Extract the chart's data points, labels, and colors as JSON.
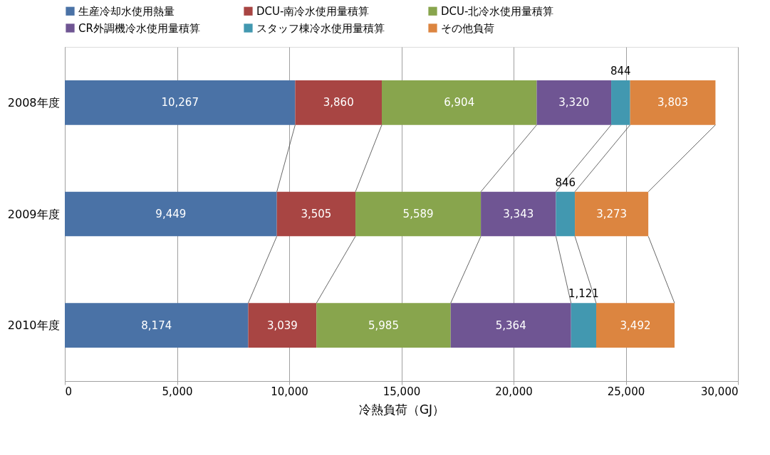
{
  "chart_data": {
    "type": "bar",
    "orientation": "horizontal",
    "stacked": true,
    "xlabel": "冷熱負荷（GJ）",
    "categories": [
      "2008年度",
      "2009年度",
      "2010年度"
    ],
    "series": [
      {
        "name": "生産冷却水使用熱量",
        "color": "#4a72a6",
        "values": [
          10267,
          9449,
          8174
        ],
        "value_labels": [
          "10,267",
          "9,449",
          "8,174"
        ]
      },
      {
        "name": "DCU-南冷水使用量積算",
        "color": "#a84543",
        "values": [
          3860,
          3505,
          3039
        ],
        "value_labels": [
          "3,860",
          "3,505",
          "3,039"
        ]
      },
      {
        "name": "DCU-北冷水使用量積算",
        "color": "#88a54d",
        "values": [
          6904,
          5589,
          5985
        ],
        "value_labels": [
          "6,904",
          "5,589",
          "5,985"
        ]
      },
      {
        "name": "CR外調機冷水使用量積算",
        "color": "#6f5593",
        "values": [
          3320,
          3343,
          5364
        ],
        "value_labels": [
          "3,320",
          "3,343",
          "5,364"
        ]
      },
      {
        "name": "スタッフ棟冷水使用量積算",
        "color": "#4298b0",
        "values": [
          844,
          846,
          1121
        ],
        "value_labels": [
          "844",
          "846",
          "1,121"
        ]
      },
      {
        "name": "その他負荷",
        "color": "#dc8540",
        "values": [
          3803,
          3273,
          3492
        ],
        "value_labels": [
          "3,803",
          "3,273",
          "3,492"
        ]
      }
    ],
    "xlim": [
      0,
      30000
    ],
    "xticks": [
      {
        "value": 0,
        "label": "0"
      },
      {
        "value": 5000,
        "label": "5,000"
      },
      {
        "value": 10000,
        "label": "10,000"
      },
      {
        "value": 15000,
        "label": "15,000"
      },
      {
        "value": 20000,
        "label": "20,000"
      },
      {
        "value": 25000,
        "label": "25,000"
      },
      {
        "value": 30000,
        "label": "30,000"
      }
    ],
    "grid": "x",
    "legend": "top"
  }
}
